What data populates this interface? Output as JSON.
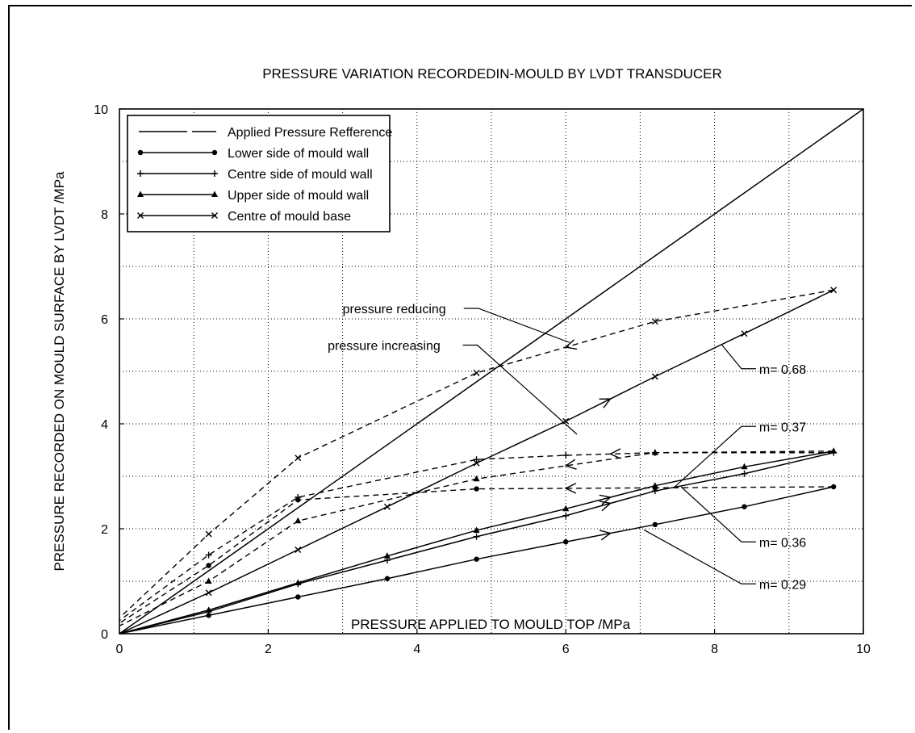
{
  "chart_data": {
    "type": "line",
    "title": "PRESSURE VARIATION RECORDEDIN-MOULD BY LVDT TRANSDUCER",
    "xlabel": "PRESSURE APPLIED TO MOULD TOP  /MPa",
    "ylabel": "PRESSURE RECORDED ON MOULD SURFACE BY LVDT  /MPa",
    "xlim": [
      0,
      10
    ],
    "ylim": [
      0,
      10
    ],
    "xticks": [
      "0",
      "2",
      "4",
      "6",
      "8",
      "10"
    ],
    "yticks": [
      "0",
      "2",
      "4",
      "6",
      "8",
      "10"
    ],
    "grid": true,
    "legend_position": "top-left",
    "series": [
      {
        "name": "Applied Pressure Refference",
        "marker": "none",
        "increasing": [
          [
            0,
            0
          ],
          [
            10,
            10
          ]
        ],
        "reducing": []
      },
      {
        "name": "Lower side of mould wall",
        "marker": "dot",
        "increasing": [
          [
            0,
            0
          ],
          [
            1.2,
            0.35
          ],
          [
            2.4,
            0.7
          ],
          [
            3.6,
            1.05
          ],
          [
            4.8,
            1.42
          ],
          [
            6.0,
            1.75
          ],
          [
            7.2,
            2.08
          ],
          [
            8.4,
            2.42
          ],
          [
            9.6,
            2.8
          ]
        ],
        "reducing": [
          [
            9.6,
            2.8
          ],
          [
            7.2,
            2.78
          ],
          [
            4.8,
            2.76
          ],
          [
            2.4,
            2.55
          ],
          [
            1.2,
            1.3
          ],
          [
            0,
            0.2
          ]
        ]
      },
      {
        "name": "Centre side of mould wall",
        "marker": "plus",
        "increasing": [
          [
            0,
            0
          ],
          [
            1.2,
            0.42
          ],
          [
            2.4,
            0.95
          ],
          [
            3.6,
            1.4
          ],
          [
            4.8,
            1.85
          ],
          [
            6.0,
            2.25
          ],
          [
            7.2,
            2.72
          ],
          [
            8.4,
            3.05
          ],
          [
            9.6,
            3.45
          ]
        ],
        "reducing": [
          [
            9.6,
            3.45
          ],
          [
            7.2,
            3.45
          ],
          [
            6.0,
            3.4
          ],
          [
            4.8,
            3.32
          ],
          [
            2.4,
            2.6
          ],
          [
            1.2,
            1.5
          ],
          [
            0,
            0.25
          ]
        ]
      },
      {
        "name": "Upper side of mould wall",
        "marker": "triangle",
        "increasing": [
          [
            0,
            0
          ],
          [
            1.2,
            0.45
          ],
          [
            2.4,
            0.97
          ],
          [
            3.6,
            1.48
          ],
          [
            4.8,
            1.97
          ],
          [
            6.0,
            2.38
          ],
          [
            7.2,
            2.82
          ],
          [
            8.4,
            3.18
          ],
          [
            9.6,
            3.48
          ]
        ],
        "reducing": [
          [
            9.6,
            3.48
          ],
          [
            7.2,
            3.45
          ],
          [
            4.8,
            2.95
          ],
          [
            2.4,
            2.15
          ],
          [
            1.2,
            1.0
          ],
          [
            0,
            0.15
          ]
        ]
      },
      {
        "name": "Centre of mould base",
        "marker": "cross",
        "increasing": [
          [
            0,
            0
          ],
          [
            1.2,
            0.78
          ],
          [
            2.4,
            1.6
          ],
          [
            3.6,
            2.42
          ],
          [
            4.8,
            3.25
          ],
          [
            6.0,
            4.05
          ],
          [
            7.2,
            4.9
          ],
          [
            8.4,
            5.72
          ],
          [
            9.6,
            6.55
          ]
        ],
        "reducing": [
          [
            9.6,
            6.55
          ],
          [
            7.2,
            5.95
          ],
          [
            4.8,
            4.97
          ],
          [
            2.4,
            3.35
          ],
          [
            1.2,
            1.9
          ],
          [
            0,
            0.3
          ]
        ]
      }
    ],
    "annotations": [
      {
        "text": "pressure reducing",
        "x_text": 3.0,
        "y_text": 6.2,
        "target": [
          6.05,
          5.55
        ]
      },
      {
        "text": "pressure increasing",
        "x_text": 2.8,
        "y_text": 5.5,
        "target": [
          6.15,
          3.8
        ]
      },
      {
        "text": "m= 0.68",
        "x_text": 8.6,
        "y_text": 5.05,
        "target": [
          8.1,
          5.5
        ]
      },
      {
        "text": "m= 0.37",
        "x_text": 8.6,
        "y_text": 3.95,
        "target": [
          7.45,
          2.78
        ]
      },
      {
        "text": "m= 0.36",
        "x_text": 8.6,
        "y_text": 1.75,
        "target": [
          7.55,
          2.8
        ]
      },
      {
        "text": "m= 0.29",
        "x_text": 8.6,
        "y_text": 0.95,
        "target": [
          7.05,
          1.98
        ]
      }
    ]
  }
}
